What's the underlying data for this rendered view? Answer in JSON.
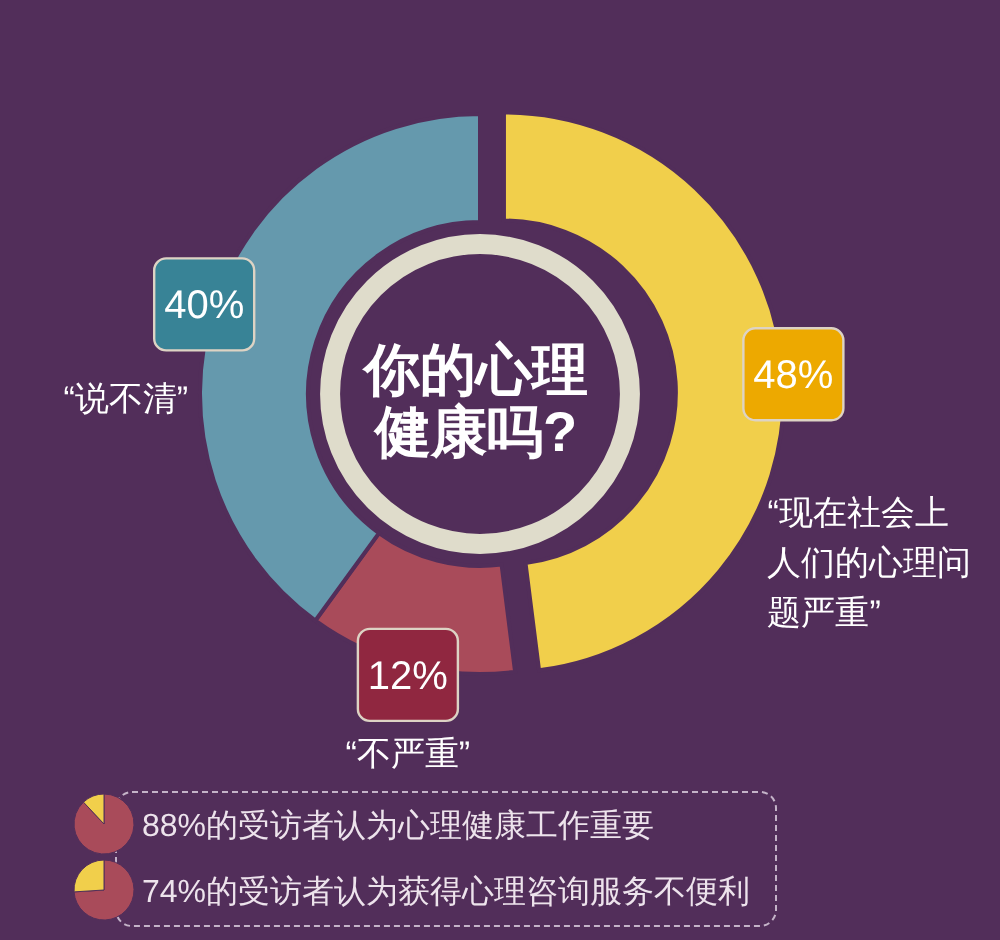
{
  "chart_data": [
    {
      "type": "donut",
      "title": "你的心理健康吗?",
      "categories": [
        "“现在社会上人们的心理问题严重”",
        "“不严重”",
        "“说不清”"
      ],
      "values": [
        48,
        12,
        40
      ],
      "colors": [
        "#f1cf4b",
        "#a94b5a",
        "#6599ad"
      ],
      "value_labels": [
        "48%",
        "12%",
        "40%"
      ]
    },
    {
      "type": "pie",
      "title": "88%的受访者认为心理健康工作重要",
      "categories": [
        null,
        null
      ],
      "values": [
        88,
        12
      ],
      "colors": [
        "#a94b5a",
        "#f1cf4b"
      ]
    },
    {
      "type": "pie",
      "title": "74%的受访者认为获得心理咨询服务不便利",
      "categories": [
        null,
        null
      ],
      "values": [
        74,
        26
      ],
      "colors": [
        "#a94b5a",
        "#f1cf4b"
      ]
    }
  ]
}
